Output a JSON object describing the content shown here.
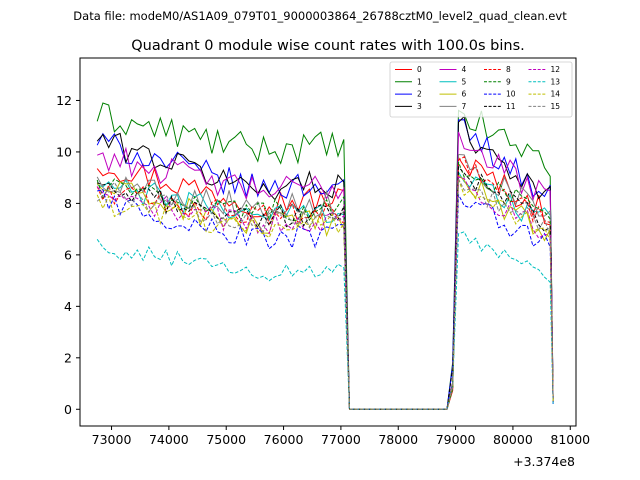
{
  "chart_data": {
    "type": "line",
    "suptitle": "Data file: modeM0/AS1A09_079T01_9000003864_26788cztM0_level2_quad_clean.evt",
    "title": "Quadrant 0 module wise count rates with 100.0s bins.",
    "xlabel": "",
    "ylabel": "",
    "x_offset_label": "+3.374e8",
    "xlim": [
      72450,
      81100
    ],
    "ylim": [
      -0.65,
      13.65
    ],
    "xticks": [
      73000,
      74000,
      75000,
      76000,
      77000,
      78000,
      79000,
      80000,
      81000
    ],
    "yticks": [
      0,
      2,
      4,
      6,
      8,
      10,
      12
    ],
    "bin_width_s": 100,
    "segments": [
      {
        "start": 72750,
        "end": 77050
      },
      {
        "start": 77150,
        "end": 78850
      },
      {
        "start": 78950,
        "end": 80650
      }
    ],
    "legend": {
      "location": "top-right",
      "ncols": 4
    },
    "series": [
      {
        "name": "0",
        "color": "#ff0000",
        "dash": "solid",
        "levels": [
          9.6,
          8.0,
          9.8
        ],
        "noise": 0.55
      },
      {
        "name": "1",
        "color": "#008000",
        "dash": "solid",
        "levels": [
          11.4,
          10.1,
          11.6
        ],
        "noise": 0.6
      },
      {
        "name": "2",
        "color": "#0000ff",
        "dash": "solid",
        "levels": [
          10.4,
          8.6,
          11.3
        ],
        "noise": 0.55
      },
      {
        "name": "3",
        "color": "#000000",
        "dash": "solid",
        "levels": [
          10.5,
          8.6,
          11.2
        ],
        "noise": 0.55
      },
      {
        "name": "4",
        "color": "#bf00bf",
        "dash": "solid",
        "levels": [
          9.9,
          8.5,
          10.8
        ],
        "noise": 0.55
      },
      {
        "name": "5",
        "color": "#00bfbf",
        "dash": "solid",
        "levels": [
          8.7,
          7.6,
          9.2
        ],
        "noise": 0.5
      },
      {
        "name": "6",
        "color": "#bfbf00",
        "dash": "solid",
        "levels": [
          8.7,
          7.1,
          9.1
        ],
        "noise": 0.5
      },
      {
        "name": "7",
        "color": "#808080",
        "dash": "solid",
        "levels": [
          8.9,
          7.9,
          9.9
        ],
        "noise": 0.5
      },
      {
        "name": "8",
        "color": "#ff0000",
        "dash": "dashed",
        "levels": [
          8.5,
          7.5,
          9.7
        ],
        "noise": 0.45
      },
      {
        "name": "9",
        "color": "#008000",
        "dash": "dashed",
        "levels": [
          8.7,
          7.7,
          9.6
        ],
        "noise": 0.45
      },
      {
        "name": "10",
        "color": "#0000ff",
        "dash": "dashed",
        "levels": [
          8.2,
          6.6,
          8.3
        ],
        "noise": 0.5
      },
      {
        "name": "11",
        "color": "#000000",
        "dash": "dashed",
        "levels": [
          8.5,
          7.5,
          9.4
        ],
        "noise": 0.45
      },
      {
        "name": "12",
        "color": "#bf00bf",
        "dash": "dashed",
        "levels": [
          8.3,
          7.2,
          9.0
        ],
        "noise": 0.45
      },
      {
        "name": "13",
        "color": "#00bfbf",
        "dash": "dashed",
        "levels": [
          6.3,
          5.3,
          6.8
        ],
        "noise": 0.35
      },
      {
        "name": "14",
        "color": "#bfbf00",
        "dash": "dashed",
        "levels": [
          7.9,
          7.1,
          8.9
        ],
        "noise": 0.45
      },
      {
        "name": "15",
        "color": "#808080",
        "dash": "dashed",
        "levels": [
          8.5,
          7.3,
          8.9
        ],
        "noise": 0.45
      }
    ]
  }
}
